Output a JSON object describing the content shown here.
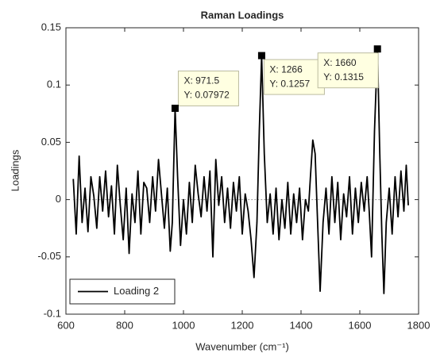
{
  "chart_data": {
    "type": "line",
    "title": "Raman Loadings",
    "x_label": "Wavenumber (cm⁻¹)",
    "y_label": "Loadings",
    "xlim": [
      600,
      1800
    ],
    "xticks": [
      600,
      800,
      1000,
      1200,
      1400,
      1600,
      1800
    ],
    "ylim": [
      -0.1,
      0.15
    ],
    "yticks": [
      -0.1,
      -0.05,
      0,
      0.05,
      0.1,
      0.15
    ],
    "legend_position": "lower left",
    "zero_line": true,
    "series": [
      {
        "name": "Loading 2",
        "color": "#000000",
        "x": [
          625,
          635,
          645,
          655,
          665,
          675,
          685,
          695,
          705,
          715,
          725,
          735,
          745,
          755,
          765,
          775,
          785,
          795,
          805,
          815,
          825,
          835,
          845,
          855,
          865,
          875,
          885,
          895,
          905,
          915,
          925,
          935,
          945,
          955,
          962,
          971.5,
          980,
          990,
          1000,
          1010,
          1020,
          1030,
          1040,
          1050,
          1060,
          1070,
          1080,
          1090,
          1100,
          1110,
          1120,
          1130,
          1140,
          1150,
          1160,
          1170,
          1180,
          1190,
          1200,
          1210,
          1220,
          1230,
          1240,
          1250,
          1258,
          1266,
          1275,
          1285,
          1295,
          1305,
          1315,
          1325,
          1335,
          1345,
          1355,
          1365,
          1375,
          1385,
          1395,
          1405,
          1415,
          1425,
          1432,
          1440,
          1448,
          1455,
          1465,
          1475,
          1485,
          1495,
          1505,
          1515,
          1525,
          1535,
          1545,
          1555,
          1565,
          1575,
          1585,
          1595,
          1605,
          1615,
          1625,
          1632,
          1640,
          1650,
          1660,
          1668,
          1675,
          1682,
          1690,
          1700,
          1710,
          1720,
          1730,
          1740,
          1750,
          1758,
          1765
        ],
        "values": [
          0.018,
          -0.03,
          0.038,
          -0.02,
          0.01,
          -0.028,
          0.02,
          0.003,
          -0.025,
          0.02,
          -0.01,
          0.025,
          -0.015,
          0.012,
          -0.03,
          0.03,
          -0.005,
          -0.035,
          0.01,
          -0.047,
          0.005,
          -0.02,
          0.025,
          -0.03,
          0.015,
          0.01,
          -0.02,
          0.02,
          -0.01,
          0.035,
          0.005,
          -0.025,
          0.01,
          -0.045,
          -0.02,
          0.07972,
          0.02,
          -0.04,
          0.0,
          -0.03,
          0.015,
          -0.02,
          0.03,
          0.005,
          -0.015,
          0.02,
          -0.01,
          0.025,
          -0.05,
          0.035,
          -0.005,
          0.02,
          -0.02,
          0.01,
          -0.025,
          0.015,
          -0.01,
          0.02,
          -0.03,
          0.005,
          -0.01,
          -0.035,
          -0.068,
          -0.02,
          0.06,
          0.1257,
          0.04,
          -0.02,
          0.005,
          -0.03,
          0.01,
          -0.035,
          0.0,
          -0.025,
          0.015,
          -0.03,
          0.005,
          -0.02,
          0.01,
          -0.035,
          0.0,
          -0.01,
          0.02,
          0.052,
          0.04,
          -0.01,
          -0.08,
          -0.02,
          0.01,
          -0.03,
          0.02,
          -0.02,
          0.015,
          -0.035,
          0.005,
          -0.015,
          0.02,
          -0.03,
          0.01,
          -0.02,
          0.015,
          -0.01,
          0.02,
          -0.01,
          -0.05,
          0.06,
          0.1315,
          0.04,
          -0.03,
          -0.082,
          -0.02,
          0.01,
          -0.03,
          0.02,
          -0.015,
          0.025,
          -0.01,
          0.03,
          -0.005
        ]
      }
    ],
    "data_tips": [
      {
        "x": 971.5,
        "y": 0.07972,
        "labels": [
          "X: 971.5",
          "Y: 0.07972"
        ]
      },
      {
        "x": 1266,
        "y": 0.1257,
        "labels": [
          "X: 1266",
          "Y: 0.1257"
        ]
      },
      {
        "x": 1660,
        "y": 0.1315,
        "labels": [
          "X: 1660",
          "Y: 0.1315"
        ]
      }
    ]
  }
}
